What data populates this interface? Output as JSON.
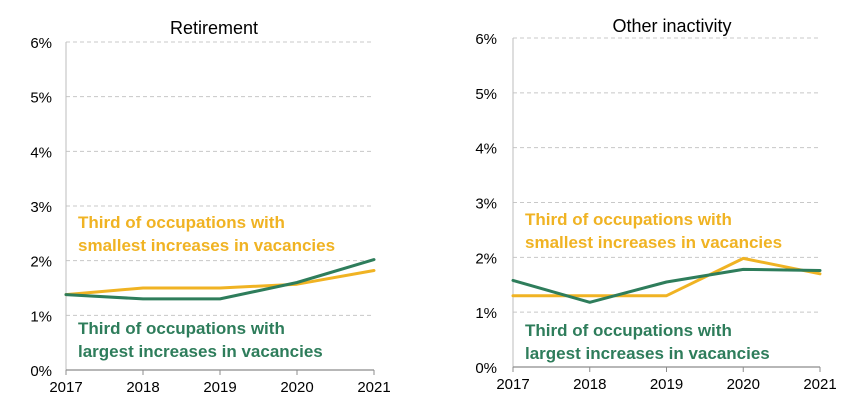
{
  "chart_data": [
    {
      "type": "line",
      "title": "Retirement",
      "x": [
        "2017",
        "2018",
        "2019",
        "2020",
        "2021"
      ],
      "ylim": [
        0,
        6
      ],
      "yticks": [
        "0%",
        "1%",
        "2%",
        "3%",
        "4%",
        "5%",
        "6%"
      ],
      "grid": true,
      "series": [
        {
          "name": "Third of occupations with smallest increases in vacancies",
          "label_lines": [
            "Third of occupations with",
            "smallest increases in vacancies"
          ],
          "color": "#f0b323",
          "values": [
            1.38,
            1.5,
            1.5,
            1.57,
            1.82
          ]
        },
        {
          "name": "Third of occupations with largest increases in vacancies",
          "label_lines": [
            "Third of occupations with",
            "largest increases in vacancies"
          ],
          "color": "#2e7d5b",
          "values": [
            1.38,
            1.3,
            1.3,
            1.6,
            2.02
          ]
        }
      ]
    },
    {
      "type": "line",
      "title": "Other inactivity",
      "x": [
        "2017",
        "2018",
        "2019",
        "2020",
        "2021"
      ],
      "ylim": [
        0,
        6
      ],
      "yticks": [
        "0%",
        "1%",
        "2%",
        "3%",
        "4%",
        "5%",
        "6%"
      ],
      "grid": true,
      "series": [
        {
          "name": "Third of occupations with smallest increases in vacancies",
          "label_lines": [
            "Third of occupations with",
            "smallest increases in vacancies"
          ],
          "color": "#f0b323",
          "values": [
            1.3,
            1.3,
            1.3,
            1.98,
            1.7
          ]
        },
        {
          "name": "Third of occupations with largest increases in vacancies",
          "label_lines": [
            "Third of occupations with",
            "largest increases in vacancies"
          ],
          "color": "#2e7d5b",
          "values": [
            1.58,
            1.18,
            1.55,
            1.78,
            1.76
          ]
        }
      ]
    }
  ]
}
